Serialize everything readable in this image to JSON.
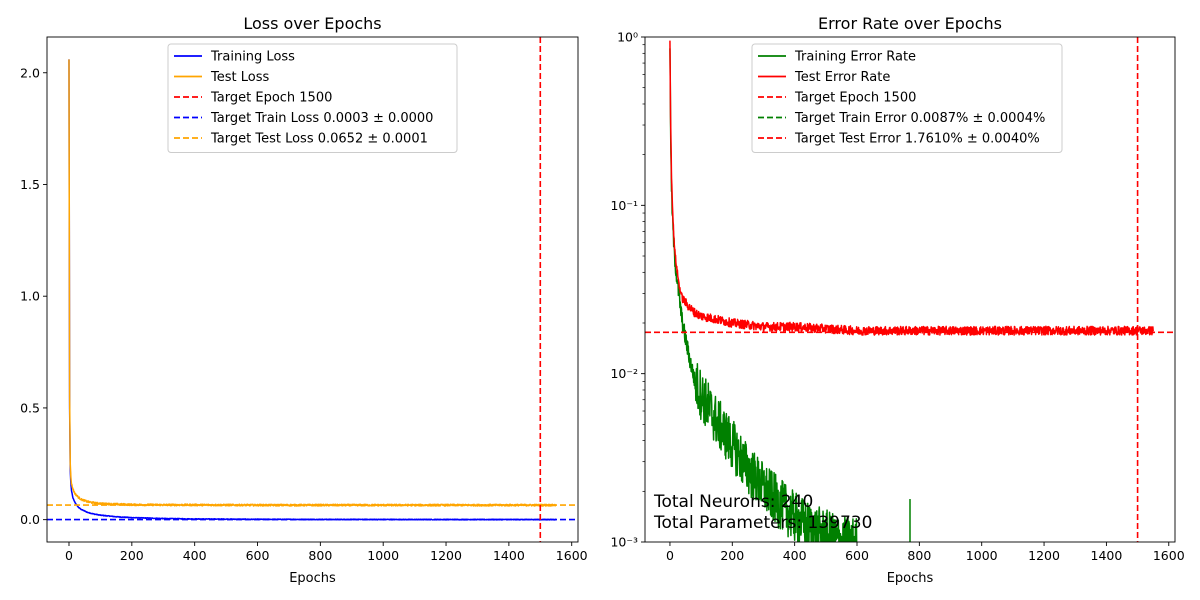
{
  "chart_data": [
    {
      "type": "line",
      "title": "Loss over Epochs",
      "xlabel": "Epochs",
      "ylabel": "",
      "xlim": [
        -70,
        1620
      ],
      "ylim": [
        -0.1,
        2.16
      ],
      "yscale": "linear",
      "grid": false,
      "legend_position": "top-center",
      "xticks": [
        0,
        200,
        400,
        600,
        800,
        1000,
        1200,
        1400,
        1600
      ],
      "xtick_labels": [
        "0",
        "200",
        "400",
        "600",
        "800",
        "1000",
        "1200",
        "1400",
        "1600"
      ],
      "yticks": [
        0.0,
        0.5,
        1.0,
        1.5,
        2.0
      ],
      "ytick_labels": [
        "0.0",
        "0.5",
        "1.0",
        "1.5",
        "2.0"
      ],
      "series": [
        {
          "name": "Training Loss",
          "color": "#0000ff",
          "style": "solid",
          "x": [
            0,
            2,
            4,
            6,
            8,
            12,
            16,
            20,
            30,
            40,
            60,
            80,
            100,
            150,
            200,
            300,
            400,
            600,
            800,
            1000,
            1200,
            1400,
            1550
          ],
          "y": [
            2.06,
            0.5,
            0.22,
            0.16,
            0.13,
            0.1,
            0.085,
            0.075,
            0.055,
            0.045,
            0.032,
            0.025,
            0.02,
            0.013,
            0.009,
            0.005,
            0.003,
            0.0015,
            0.001,
            0.0007,
            0.0005,
            0.0004,
            0.0003
          ]
        },
        {
          "name": "Test Loss",
          "color": "#ffa500",
          "style": "solid",
          "x": [
            0,
            2,
            4,
            6,
            8,
            12,
            16,
            20,
            30,
            40,
            60,
            80,
            100,
            150,
            200,
            300,
            400,
            600,
            800,
            1000,
            1200,
            1400,
            1550
          ],
          "y": [
            2.06,
            0.55,
            0.25,
            0.19,
            0.16,
            0.14,
            0.125,
            0.115,
            0.1,
            0.09,
            0.08,
            0.075,
            0.072,
            0.069,
            0.067,
            0.066,
            0.066,
            0.065,
            0.065,
            0.065,
            0.065,
            0.065,
            0.065
          ]
        }
      ],
      "reference_lines": [
        {
          "name": "Target Epoch 1500",
          "orientation": "vertical",
          "value": 1500,
          "color": "#ff0000"
        },
        {
          "name": "Target Train Loss 0.0003 ± 0.0000",
          "orientation": "horizontal",
          "value": 0.0003,
          "color": "#0000ff"
        },
        {
          "name": "Target Test Loss 0.0652 ± 0.0001",
          "orientation": "horizontal",
          "value": 0.0652,
          "color": "#ffa500"
        }
      ],
      "annotations": []
    },
    {
      "type": "line",
      "title": "Error Rate over Epochs",
      "xlabel": "Epochs",
      "ylabel": "",
      "xlim": [
        -80,
        1620
      ],
      "ylim": [
        0.001,
        1
      ],
      "yscale": "log",
      "grid": false,
      "legend_position": "top-center",
      "xticks": [
        0,
        200,
        400,
        600,
        800,
        1000,
        1200,
        1400,
        1600
      ],
      "xtick_labels": [
        "0",
        "200",
        "400",
        "600",
        "800",
        "1000",
        "1200",
        "1400",
        "1600"
      ],
      "yticks": [
        0.001,
        0.01,
        0.1,
        1
      ],
      "ytick_labels": [
        "10⁻³",
        "10⁻²",
        "10⁻¹",
        "10⁰"
      ],
      "series": [
        {
          "name": "Training Error Rate",
          "color": "#008000",
          "style": "solid",
          "x": [
            0,
            2,
            5,
            10,
            15,
            20,
            30,
            40,
            60,
            80,
            100,
            150,
            200,
            250,
            300,
            350,
            400,
            450,
            500,
            550,
            600
          ],
          "y": [
            0.9,
            0.3,
            0.12,
            0.07,
            0.05,
            0.04,
            0.028,
            0.02,
            0.013,
            0.009,
            0.0075,
            0.0052,
            0.0038,
            0.0027,
            0.0021,
            0.0017,
            0.0014,
            0.0012,
            0.0011,
            0.001,
            0.001
          ]
        },
        {
          "name": "Test Error Rate",
          "color": "#ff0000",
          "style": "solid",
          "x": [
            0,
            2,
            5,
            10,
            15,
            20,
            30,
            40,
            60,
            80,
            100,
            150,
            200,
            300,
            400,
            600,
            800,
            1000,
            1200,
            1400,
            1550
          ],
          "y": [
            0.92,
            0.35,
            0.15,
            0.08,
            0.055,
            0.045,
            0.033,
            0.028,
            0.025,
            0.023,
            0.022,
            0.021,
            0.02,
            0.019,
            0.019,
            0.018,
            0.018,
            0.018,
            0.018,
            0.018,
            0.018
          ]
        }
      ],
      "reference_lines": [
        {
          "name": "Target Epoch 1500",
          "orientation": "vertical",
          "value": 1500,
          "color": "#ff0000"
        },
        {
          "name": "Target Train Error 0.0087% ± 0.0004%",
          "orientation": "horizontal",
          "value": 8.7e-05,
          "color": "#008000"
        },
        {
          "name": "Target Test Error 1.7610% ± 0.0040%",
          "orientation": "horizontal",
          "value": 0.01761,
          "color": "#ff0000"
        }
      ],
      "annotations": [
        "Total Neurons: 240",
        "Total Parameters: 139730"
      ],
      "spikes": [
        {
          "x": 770,
          "y": 0.0018
        }
      ]
    }
  ]
}
